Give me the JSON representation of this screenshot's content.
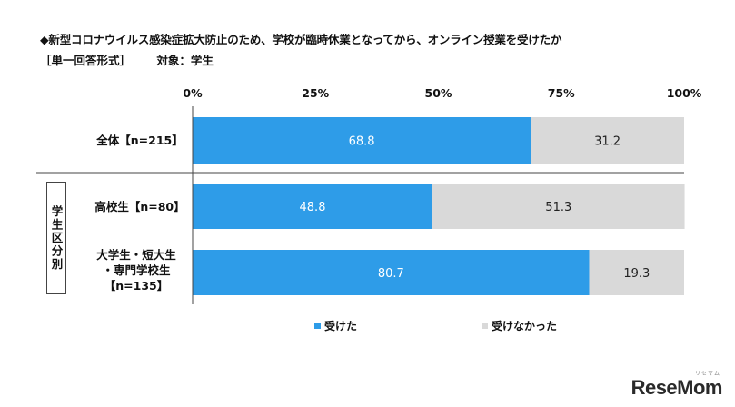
{
  "title": "◆新型コロナウイルス感染症拡大防止のため、学校が臨時休業となってから、オンライン授業を受けたか",
  "subtitle": {
    "format": "［単一回答形式］",
    "target": "対象：学生"
  },
  "group_label": "学生区分別",
  "categories": [
    {
      "lines": [
        "全体【n=215】"
      ]
    },
    {
      "lines": [
        "高校生【n=80】"
      ]
    },
    {
      "lines": [
        "大学生・短大生",
        "・専門学校生",
        "【n=135】"
      ]
    }
  ],
  "legend": [
    {
      "label": "受けた",
      "color": "#2e9ce8"
    },
    {
      "label": "受けなかった",
      "color": "#d9d9d9"
    }
  ],
  "logo": {
    "text_main": "ReseMom",
    "text_sub": "リセマム"
  },
  "chart_data": {
    "type": "bar",
    "orientation": "horizontal-stacked",
    "title": "◆新型コロナウイルス感染症拡大防止のため、学校が臨時休業となってから、オンライン授業を受けたか",
    "categories": [
      "全体【n=215】",
      "高校生【n=80】",
      "大学生・短大生・専門学校生【n=135】"
    ],
    "series": [
      {
        "name": "受けた",
        "values": [
          68.8,
          48.8,
          80.7
        ],
        "color": "#2e9ce8"
      },
      {
        "name": "受けなかった",
        "values": [
          31.2,
          51.3,
          19.3
        ],
        "color": "#d9d9d9"
      }
    ],
    "xlim": [
      0,
      100
    ],
    "x_ticks": [
      "0%",
      "25%",
      "50%",
      "75%",
      "100%"
    ],
    "legend_position": "bottom",
    "grid": false
  }
}
